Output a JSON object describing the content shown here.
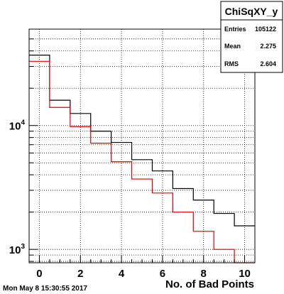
{
  "timestamp": "Mon May  8 15:30:55 2017",
  "stats_box": {
    "title": "ChiSqXY_y",
    "rows": [
      {
        "label": "Entries",
        "value": "105122"
      },
      {
        "label": "Mean",
        "value": "2.275"
      },
      {
        "label": "RMS",
        "value": "2.604"
      }
    ]
  },
  "chart_data": {
    "type": "histogram",
    "title": "",
    "xlabel": "No. of Bad Points",
    "ylabel": "",
    "log_y": true,
    "grid": true,
    "xlim": [
      -0.5,
      10.5
    ],
    "ylim": [
      780,
      60000
    ],
    "x_ticks": [
      0,
      2,
      4,
      6,
      8,
      10
    ],
    "y_ticks": [
      {
        "value": 1000,
        "base": "10",
        "exp": "3"
      },
      {
        "value": 10000,
        "base": "10",
        "exp": "4"
      }
    ],
    "bins": [
      {
        "low": -0.5,
        "high": 0.5
      },
      {
        "low": 0.5,
        "high": 1.5
      },
      {
        "low": 1.5,
        "high": 2.5
      },
      {
        "low": 2.5,
        "high": 3.5
      },
      {
        "low": 3.5,
        "high": 4.5
      },
      {
        "low": 4.5,
        "high": 5.5
      },
      {
        "low": 5.5,
        "high": 6.5
      },
      {
        "low": 6.5,
        "high": 7.5
      },
      {
        "low": 7.5,
        "high": 8.5
      },
      {
        "low": 8.5,
        "high": 9.5
      },
      {
        "low": 9.5,
        "high": 10.5
      }
    ],
    "series": [
      {
        "color": "#000000",
        "values": [
          37000,
          16000,
          12500,
          9000,
          7300,
          5300,
          4300,
          3100,
          2500,
          1950,
          1550
        ]
      },
      {
        "color": "#e00000",
        "values": [
          33000,
          14000,
          9800,
          7200,
          5100,
          3700,
          2850,
          2000,
          1400,
          1000,
          780
        ]
      }
    ]
  }
}
